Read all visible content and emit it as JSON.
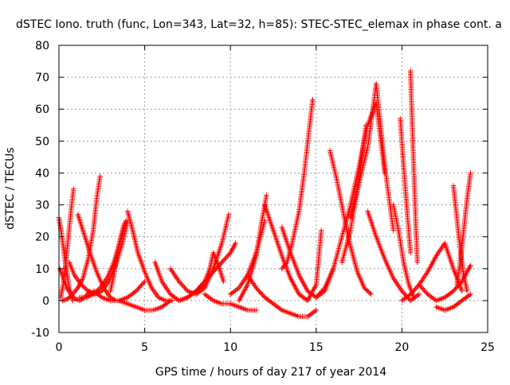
{
  "chart_data": {
    "type": "scatter",
    "title": "dSTEC Iono. truth (func, Lon=343, Lat=32, h=85): STEC-STEC_elemax in phase cont. a",
    "xlabel": "GPS time / hours of day 217 of year 2014",
    "ylabel": "dSTEC  / TECUs",
    "xlim": [
      0,
      25
    ],
    "ylim": [
      -10,
      80
    ],
    "xticks": [
      0,
      5,
      10,
      15,
      20,
      25
    ],
    "yticks": [
      -10,
      0,
      10,
      20,
      30,
      40,
      50,
      60,
      70,
      80
    ],
    "grid": true,
    "legend": "none",
    "marker": "plus",
    "color": "#ff0000",
    "series": [
      {
        "x": [
          0.0,
          0.15,
          0.3,
          0.45,
          0.6,
          0.8
        ],
        "y": [
          26,
          21,
          15,
          9,
          4,
          0
        ]
      },
      {
        "x": [
          0.05,
          0.25,
          0.45,
          0.7,
          0.95,
          1.2,
          1.5,
          1.8
        ],
        "y": [
          10,
          7,
          4,
          2,
          0.5,
          0,
          1,
          3
        ]
      },
      {
        "x": [
          0.1,
          0.25,
          0.4,
          0.55,
          0.7,
          0.85
        ],
        "y": [
          1,
          5,
          12,
          20,
          28,
          35
        ]
      },
      {
        "x": [
          0.2,
          0.5,
          0.8,
          1.1,
          1.4,
          1.7,
          2.0,
          2.2,
          2.4
        ],
        "y": [
          0,
          0.5,
          2,
          4,
          7,
          13,
          22,
          32,
          39
        ]
      },
      {
        "x": [
          0.6,
          0.9,
          1.3,
          1.7,
          2.1,
          2.5,
          2.9,
          3.3,
          3.7,
          4.0
        ],
        "y": [
          12,
          8,
          5,
          3,
          2,
          3,
          6,
          11,
          18,
          25
        ]
      },
      {
        "x": [
          1.1,
          1.4,
          1.8,
          2.2,
          2.6,
          3.0,
          3.3
        ],
        "y": [
          27,
          22,
          15,
          9,
          4,
          1,
          0
        ]
      },
      {
        "x": [
          1.2,
          1.6,
          2.0,
          2.4,
          2.8,
          3.2,
          3.6,
          3.9
        ],
        "y": [
          1,
          1,
          2,
          4,
          7,
          12,
          19,
          25
        ]
      },
      {
        "x": [
          2.0,
          2.5,
          3.0,
          3.5,
          4.0,
          4.5,
          5.0
        ],
        "y": [
          3,
          1,
          0,
          0,
          1,
          3,
          6
        ]
      },
      {
        "x": [
          3.0,
          3.2,
          3.4,
          3.6,
          3.8
        ],
        "y": [
          3,
          8,
          15,
          20,
          24
        ]
      },
      {
        "x": [
          4.0,
          4.3,
          4.6,
          5.0,
          5.4,
          5.8,
          6.2,
          6.6
        ],
        "y": [
          28,
          22,
          15,
          9,
          4,
          1,
          0,
          0
        ]
      },
      {
        "x": [
          3.5,
          4.0,
          4.5,
          5.0,
          5.5,
          6.0,
          6.5
        ],
        "y": [
          0,
          -1,
          -2,
          -3,
          -3,
          -2,
          0
        ]
      },
      {
        "x": [
          5.6,
          6.0,
          6.5,
          7.0,
          7.5,
          8.0,
          8.5
        ],
        "y": [
          12,
          6,
          2,
          0,
          1,
          3,
          5
        ]
      },
      {
        "x": [
          6.5,
          7.0,
          7.5,
          8.0,
          8.5,
          9.0,
          9.5,
          9.9
        ],
        "y": [
          10,
          6,
          3,
          2,
          4,
          10,
          18,
          27
        ]
      },
      {
        "x": [
          7.0,
          7.5,
          8.0,
          8.5,
          8.8,
          9.0,
          9.3,
          9.6
        ],
        "y": [
          0,
          1,
          3,
          6,
          10,
          15,
          11,
          6
        ]
      },
      {
        "x": [
          8.0,
          8.5,
          9.0,
          9.5,
          10.0,
          10.3
        ],
        "y": [
          3,
          6,
          9,
          12,
          15,
          18
        ]
      },
      {
        "x": [
          8.5,
          9.0,
          9.5,
          10.0,
          10.5,
          11.0,
          11.5
        ],
        "y": [
          2,
          0,
          -1,
          -1,
          -2,
          -3,
          -3
        ]
      },
      {
        "x": [
          10.0,
          10.5,
          11.0,
          11.5,
          12.0
        ],
        "y": [
          2,
          4,
          8,
          15,
          25
        ]
      },
      {
        "x": [
          10.5,
          11.0,
          11.5,
          11.8,
          12.1
        ],
        "y": [
          0,
          5,
          14,
          24,
          33
        ]
      },
      {
        "x": [
          11.0,
          11.5,
          12.0,
          12.5,
          13.0,
          13.5,
          14.0,
          14.5,
          15.0
        ],
        "y": [
          8,
          4,
          1,
          -1,
          -3,
          -4,
          -5,
          -5,
          -3
        ]
      },
      {
        "x": [
          12.0,
          12.5,
          13.0,
          13.5,
          14.0,
          14.5,
          15.0,
          15.3
        ],
        "y": [
          30,
          22,
          14,
          7,
          2,
          0,
          5,
          22
        ]
      },
      {
        "x": [
          13.0,
          13.3,
          13.6,
          14.0,
          14.3,
          14.6,
          14.8
        ],
        "y": [
          10,
          12,
          18,
          28,
          40,
          54,
          63
        ]
      },
      {
        "x": [
          13.0,
          13.5,
          14.0,
          14.5,
          15.0,
          15.5,
          16.0
        ],
        "y": [
          23,
          15,
          8,
          3,
          1,
          3,
          10
        ]
      },
      {
        "x": [
          15.0,
          15.5,
          16.0,
          16.5,
          17.0,
          17.5,
          18.0,
          18.5,
          19.0
        ],
        "y": [
          1,
          4,
          10,
          20,
          30,
          42,
          55,
          62,
          40
        ]
      },
      {
        "x": [
          15.8,
          16.2,
          16.6,
          17.0,
          17.4,
          17.8,
          18.2
        ],
        "y": [
          47,
          38,
          27,
          17,
          9,
          4,
          2
        ]
      },
      {
        "x": [
          16.5,
          17.0,
          17.5,
          17.9
        ],
        "y": [
          12,
          22,
          38,
          55
        ]
      },
      {
        "x": [
          17.0,
          17.5,
          18.0,
          18.5,
          19.0,
          19.5
        ],
        "y": [
          26,
          37,
          48,
          68,
          42,
          22
        ]
      },
      {
        "x": [
          18.0,
          18.5,
          19.0,
          19.5,
          20.0,
          20.5,
          21.0
        ],
        "y": [
          28,
          20,
          13,
          7,
          3,
          0,
          2
        ]
      },
      {
        "x": [
          19.5,
          19.8,
          20.1,
          20.4,
          20.7
        ],
        "y": [
          30,
          22,
          12,
          5,
          1
        ]
      },
      {
        "x": [
          19.9,
          20.1,
          20.3,
          20.5
        ],
        "y": [
          57,
          42,
          28,
          15
        ]
      },
      {
        "x": [
          20.5,
          20.6,
          20.7,
          20.8,
          20.9
        ],
        "y": [
          72,
          55,
          40,
          25,
          12
        ]
      },
      {
        "x": [
          20.0,
          20.5,
          21.0,
          21.5,
          22.0,
          22.5,
          23.0,
          23.5
        ],
        "y": [
          0,
          2,
          5,
          9,
          14,
          18,
          10,
          3
        ]
      },
      {
        "x": [
          21.0,
          21.5,
          22.0,
          22.5,
          23.0,
          23.5,
          24.0
        ],
        "y": [
          5,
          2,
          0,
          1,
          3,
          6,
          11
        ]
      },
      {
        "x": [
          23.0,
          23.2,
          23.4,
          23.6,
          23.8
        ],
        "y": [
          36,
          26,
          16,
          8,
          3
        ]
      },
      {
        "x": [
          23.2,
          23.4,
          23.6,
          23.8,
          24.0
        ],
        "y": [
          5,
          12,
          22,
          32,
          40
        ]
      },
      {
        "x": [
          22.0,
          22.5,
          23.0,
          23.5,
          24.0
        ],
        "y": [
          -2,
          -3,
          -2,
          0,
          2
        ]
      }
    ]
  }
}
